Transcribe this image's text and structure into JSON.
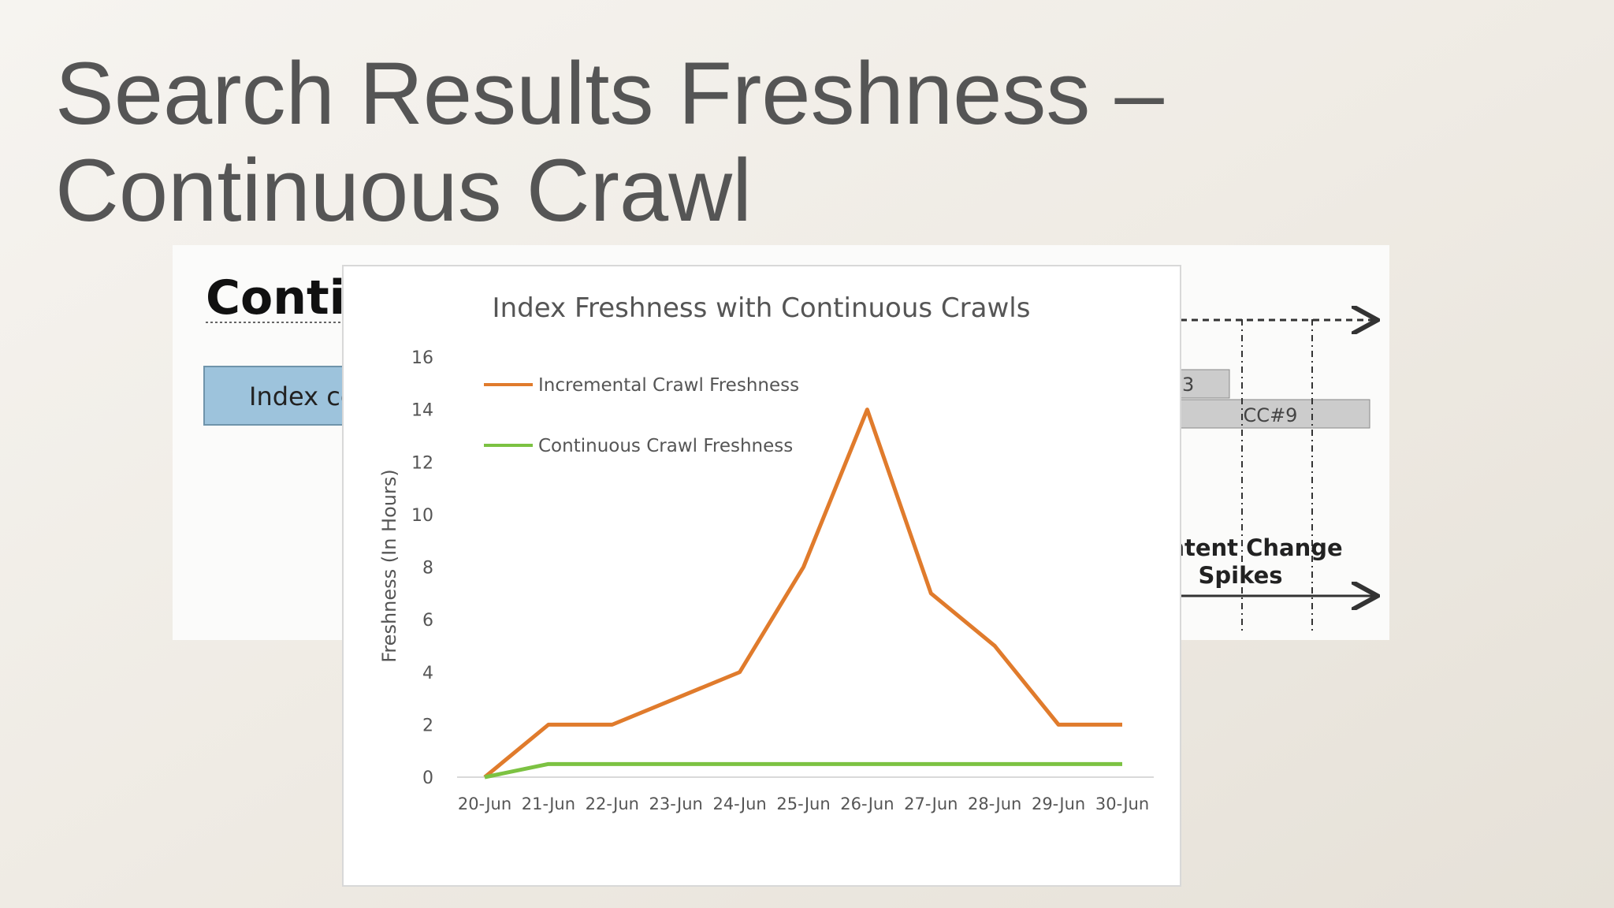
{
  "slide": {
    "title_lines": [
      "Search Results Freshness –",
      "Continuous Crawl"
    ]
  },
  "background_diagram": {
    "heading": "Conti",
    "box_label": "Index co",
    "box_right_small": "3",
    "box_right": "CC#9",
    "caption_lines": [
      "ntent Change",
      "Spikes"
    ]
  },
  "chart_data": {
    "type": "line",
    "title": "Index Freshness  with Continuous Crawls",
    "y_label": "Freshness (In Hours)",
    "categories": [
      "20-Jun",
      "21-Jun",
      "22-Jun",
      "23-Jun",
      "24-Jun",
      "25-Jun",
      "26-Jun",
      "27-Jun",
      "28-Jun",
      "29-Jun",
      "30-Jun"
    ],
    "series": [
      {
        "name": "Incremental Crawl Freshness",
        "color": "#e07b2c",
        "values": [
          0,
          2,
          2,
          3,
          4,
          8,
          14,
          7,
          5,
          2,
          2
        ]
      },
      {
        "name": "Continuous Crawl Freshness",
        "color": "#7cc242",
        "values": [
          0,
          0.5,
          0.5,
          0.5,
          0.5,
          0.5,
          0.5,
          0.5,
          0.5,
          0.5,
          0.5
        ]
      }
    ],
    "ylim": [
      0,
      16
    ],
    "yticks": [
      0,
      2,
      4,
      6,
      8,
      10,
      12,
      14,
      16
    ],
    "grid": false,
    "legend": "top-left"
  }
}
